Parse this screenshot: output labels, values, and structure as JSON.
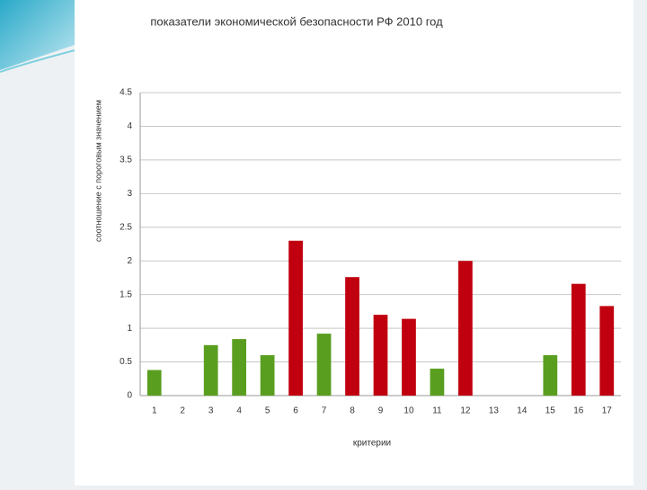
{
  "chart_data": {
    "type": "bar",
    "title": "показатели экономической безопасности РФ 2010 год",
    "x_label": "критерии",
    "y_label": "соотношение с пороговым значением",
    "categories": [
      "1",
      "2",
      "3",
      "4",
      "5",
      "6",
      "7",
      "8",
      "9",
      "10",
      "11",
      "12",
      "13",
      "14",
      "15",
      "16",
      "17"
    ],
    "values": [
      0.38,
      null,
      0.75,
      0.84,
      0.6,
      2.3,
      0.92,
      1.76,
      1.2,
      1.14,
      0.4,
      2.0,
      null,
      null,
      0.6,
      1.66,
      1.33
    ],
    "colors": [
      "#5a9e1f",
      null,
      "#5a9e1f",
      "#5a9e1f",
      "#5a9e1f",
      "#c0000f",
      "#5a9e1f",
      "#c0000f",
      "#c0000f",
      "#c0000f",
      "#5a9e1f",
      "#c0000f",
      null,
      null,
      "#5a9e1f",
      "#c0000f",
      "#c0000f"
    ],
    "ylim": [
      0,
      4.5
    ],
    "yticks": [
      0,
      0.5,
      1,
      1.5,
      2,
      2.5,
      3,
      3.5,
      4,
      4.5
    ],
    "grid": true
  }
}
